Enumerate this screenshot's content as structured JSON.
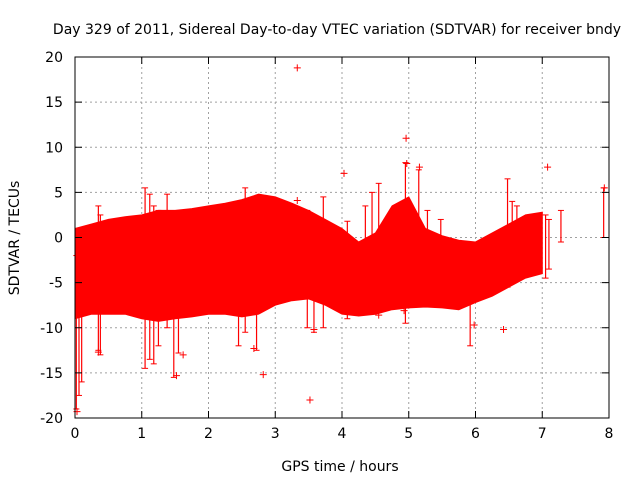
{
  "chart_data": {
    "type": "scatter",
    "title": "Day 329 of 2011, Sidereal Day-to-day VTEC variation (SDTVAR) for receiver bndy",
    "xlabel": "GPS time / hours",
    "ylabel": "SDTVAR / TECUs",
    "xlim": [
      0,
      8
    ],
    "ylim": [
      -20,
      20
    ],
    "xticks": [
      0,
      1,
      2,
      3,
      4,
      5,
      6,
      7,
      8
    ],
    "yticks": [
      -20,
      -15,
      -10,
      -5,
      0,
      5,
      10,
      15,
      20
    ],
    "grid": true,
    "color": "#ff0000",
    "series": [
      {
        "name": "SDTVAR",
        "envelope_x": [
          0.0,
          0.25,
          0.5,
          0.75,
          1.0,
          1.25,
          1.5,
          1.75,
          2.0,
          2.25,
          2.5,
          2.75,
          3.0,
          3.25,
          3.5,
          3.75,
          4.0,
          4.25,
          4.5,
          4.75,
          5.0,
          5.25,
          5.5,
          5.75,
          6.0,
          6.25,
          6.5,
          6.75,
          7.0
        ],
        "envelope_upper": [
          1.0,
          1.5,
          2.0,
          2.3,
          2.5,
          3.0,
          3.0,
          3.2,
          3.5,
          3.8,
          4.2,
          4.8,
          4.5,
          3.8,
          3.0,
          2.0,
          1.0,
          -0.5,
          0.5,
          3.5,
          4.5,
          1.0,
          0.2,
          -0.3,
          -0.5,
          0.5,
          1.5,
          2.5,
          2.8
        ],
        "envelope_lower": [
          -9.0,
          -8.5,
          -8.5,
          -8.5,
          -9.0,
          -9.3,
          -9.0,
          -8.8,
          -8.5,
          -8.5,
          -8.8,
          -8.5,
          -7.5,
          -7.0,
          -6.8,
          -7.5,
          -8.5,
          -8.7,
          -8.5,
          -8.0,
          -7.8,
          -7.7,
          -7.8,
          -8.0,
          -7.2,
          -6.5,
          -5.5,
          -4.5,
          -4.0
        ],
        "spikes": [
          {
            "x": 0.02,
            "low": -19.0,
            "high": -2.0
          },
          {
            "x": 0.06,
            "low": -17.5,
            "high": -3.0
          },
          {
            "x": 0.1,
            "low": -16.0,
            "high": -4.0
          },
          {
            "x": 0.35,
            "low": -12.5,
            "high": 3.5
          },
          {
            "x": 0.38,
            "low": -13.0,
            "high": 2.5
          },
          {
            "x": 1.05,
            "low": -14.5,
            "high": 5.5
          },
          {
            "x": 1.12,
            "low": -13.5,
            "high": 4.8
          },
          {
            "x": 1.18,
            "low": -14.0,
            "high": 3.5
          },
          {
            "x": 1.25,
            "low": -12.0,
            "high": 3.0
          },
          {
            "x": 1.38,
            "low": -10.0,
            "high": 4.8
          },
          {
            "x": 1.48,
            "low": -15.5,
            "high": 1.5
          },
          {
            "x": 1.55,
            "low": -12.8,
            "high": 2.5
          },
          {
            "x": 2.45,
            "low": -12.0,
            "high": 4.0
          },
          {
            "x": 2.55,
            "low": -10.5,
            "high": 5.5
          },
          {
            "x": 2.72,
            "low": -12.5,
            "high": 4.5
          },
          {
            "x": 3.48,
            "low": -10.0,
            "high": 3.0
          },
          {
            "x": 3.58,
            "low": -10.5,
            "high": 2.0
          },
          {
            "x": 3.72,
            "low": -10.0,
            "high": 4.5
          },
          {
            "x": 4.08,
            "low": -9.0,
            "high": 1.8
          },
          {
            "x": 4.35,
            "low": -8.5,
            "high": 3.5
          },
          {
            "x": 4.45,
            "low": -7.5,
            "high": 5.0
          },
          {
            "x": 4.55,
            "low": -7.0,
            "high": 6.0
          },
          {
            "x": 4.95,
            "low": -9.5,
            "high": 8.3
          },
          {
            "x": 5.15,
            "low": -7.5,
            "high": 7.5
          },
          {
            "x": 5.28,
            "low": -6.5,
            "high": 3.0
          },
          {
            "x": 5.48,
            "low": -5.5,
            "high": 2.0
          },
          {
            "x": 5.92,
            "low": -12.0,
            "high": -3.0
          },
          {
            "x": 6.48,
            "low": -5.5,
            "high": 6.5
          },
          {
            "x": 6.55,
            "low": -5.0,
            "high": 4.0
          },
          {
            "x": 6.62,
            "low": -4.0,
            "high": 3.5
          },
          {
            "x": 7.05,
            "low": -4.5,
            "high": 2.5
          },
          {
            "x": 7.1,
            "low": -3.5,
            "high": 2.0
          },
          {
            "x": 7.28,
            "low": -0.5,
            "high": 3.0
          },
          {
            "x": 7.92,
            "low": 0.0,
            "high": 5.5
          }
        ],
        "outliers": [
          {
            "x": 3.33,
            "y": 18.8
          },
          {
            "x": 3.52,
            "y": -18.0
          },
          {
            "x": 2.82,
            "y": -15.2
          },
          {
            "x": 4.03,
            "y": 7.1
          },
          {
            "x": 4.96,
            "y": 11.0
          },
          {
            "x": 4.97,
            "y": 8.2
          },
          {
            "x": 5.16,
            "y": 7.8
          },
          {
            "x": 7.08,
            "y": 7.8
          },
          {
            "x": 7.93,
            "y": 5.5
          },
          {
            "x": 3.33,
            "y": 4.1
          },
          {
            "x": 6.42,
            "y": -10.2
          },
          {
            "x": 5.98,
            "y": -9.7
          },
          {
            "x": 4.55,
            "y": -8.6
          },
          {
            "x": 4.93,
            "y": -8.1
          },
          {
            "x": 3.58,
            "y": -10.2
          },
          {
            "x": 2.68,
            "y": -12.3
          },
          {
            "x": 1.62,
            "y": -13.0
          },
          {
            "x": 1.52,
            "y": -15.3
          },
          {
            "x": 0.35,
            "y": -12.7
          },
          {
            "x": 0.03,
            "y": -19.3
          }
        ]
      }
    ]
  }
}
